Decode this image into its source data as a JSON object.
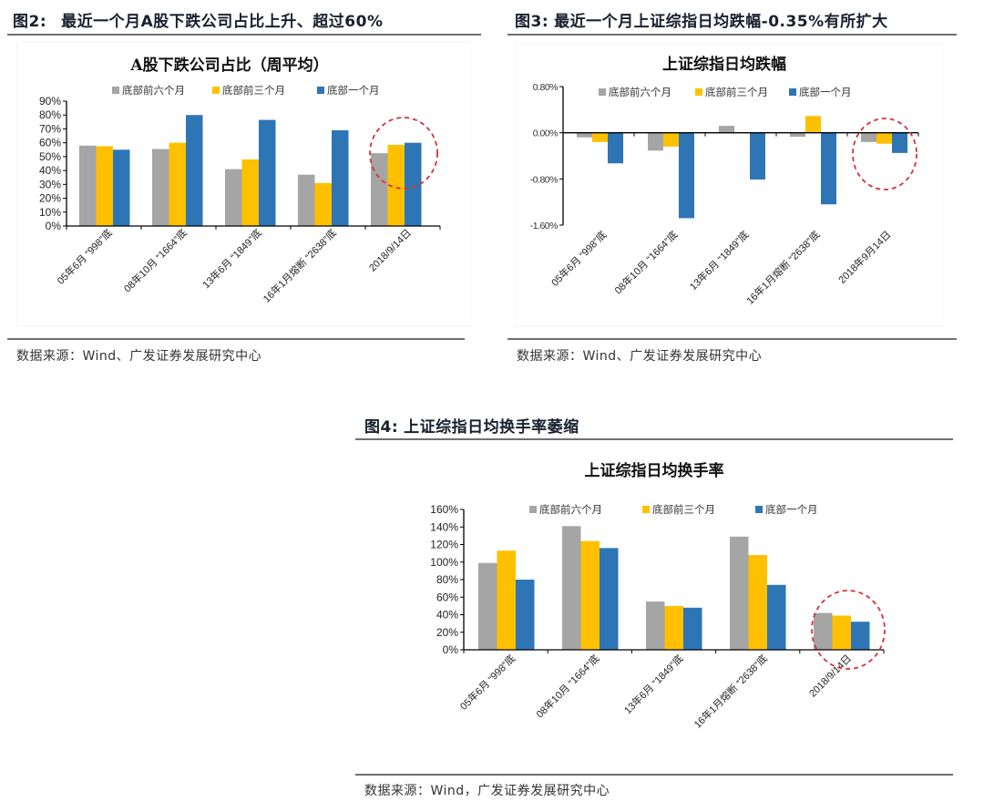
{
  "figures": {
    "fig2": {
      "label": "图2:",
      "title": "最近一个月A股下跌公司占比上升、超过60%",
      "source": "数据来源：Wind、广发证券发展研究中心"
    },
    "fig3": {
      "label": "图3:",
      "title": "最近一个月上证综指日均跌幅-0.35%有所扩大",
      "source": "数据来源：Wind、广发证券发展研究中心"
    },
    "fig4": {
      "label": "图4:",
      "title": "上证综指日均换手率萎缩",
      "source": "数据来源：Wind，广发证券发展研究中心"
    }
  },
  "colors": {
    "series": [
      "#a5a5a5",
      "#ffc000",
      "#2e75b6"
    ],
    "highlight_circle": "#d9303a",
    "axis": "#000000",
    "rule": "#707070"
  },
  "chart_data": [
    {
      "id": "fig2",
      "type": "bar",
      "title": "A股下跌公司占比（周平均）",
      "xlabel": "",
      "ylabel": "",
      "categories": [
        "05年6月 “998”底",
        "08年10月 “1664”底",
        "13年6月 “1849”底",
        "16年1月熔断 “2638”底",
        "2018/9/14日"
      ],
      "series": [
        {
          "name": "底部前六个月",
          "values": [
            58,
            55.5,
            41,
            37,
            52.5
          ]
        },
        {
          "name": "底部前三个月",
          "values": [
            57.5,
            60,
            48,
            31,
            58.5
          ]
        },
        {
          "name": "底部一个月",
          "values": [
            55,
            80,
            76.5,
            69,
            60
          ]
        }
      ],
      "unit": "%",
      "ylim": [
        0,
        90
      ],
      "yticks": [
        "0%",
        "10%",
        "20%",
        "30%",
        "40%",
        "50%",
        "60%",
        "70%",
        "80%",
        "90%"
      ],
      "legend_position": "top",
      "grid": false,
      "annotation": "red dashed circle around 2018/9/14日 group"
    },
    {
      "id": "fig3",
      "type": "bar",
      "title": "上证综指日均跌幅",
      "xlabel": "",
      "ylabel": "",
      "categories": [
        "05年6月 “998”底",
        "08年10月 “1664”底",
        "13年6月 “1849”底",
        "16年1月熔断 “2638”底",
        "2018年9月14日"
      ],
      "series": [
        {
          "name": "底部前六个月",
          "values": [
            -0.08,
            -0.31,
            0.12,
            -0.07,
            -0.16
          ]
        },
        {
          "name": "底部前三个月",
          "values": [
            -0.16,
            -0.24,
            0.0,
            0.29,
            -0.19
          ]
        },
        {
          "name": "底部一个月",
          "values": [
            -0.53,
            -1.48,
            -0.81,
            -1.24,
            -0.35
          ]
        }
      ],
      "unit": "%",
      "ylim": [
        -1.6,
        0.8
      ],
      "yticks": [
        "-1.60%",
        "-0.80%",
        "0.00%",
        "0.80%"
      ],
      "legend_position": "top",
      "grid": false,
      "annotation": "red dashed circle around 2018年9月14日 group"
    },
    {
      "id": "fig4",
      "type": "bar",
      "title": "上证综指日均换手率",
      "xlabel": "",
      "ylabel": "",
      "categories": [
        "05年6月 “998”底",
        "08年10月 “1664”底",
        "13年6月 “1849”底",
        "16年1月熔断 “2638”底",
        "2018/9/14日"
      ],
      "series": [
        {
          "name": "底部前六个月",
          "values": [
            99,
            141,
            55,
            129,
            42
          ]
        },
        {
          "name": "底部前三个月",
          "values": [
            113,
            124,
            50,
            108,
            39
          ]
        },
        {
          "name": "底部一个月",
          "values": [
            80,
            116,
            48,
            74,
            32
          ]
        }
      ],
      "unit": "%",
      "ylim": [
        0,
        160
      ],
      "yticks": [
        "0%",
        "20%",
        "40%",
        "60%",
        "80%",
        "100%",
        "120%",
        "140%",
        "160%"
      ],
      "legend_position": "top",
      "grid": false,
      "annotation": "red dashed circle around 2018/9/14日 group"
    }
  ]
}
